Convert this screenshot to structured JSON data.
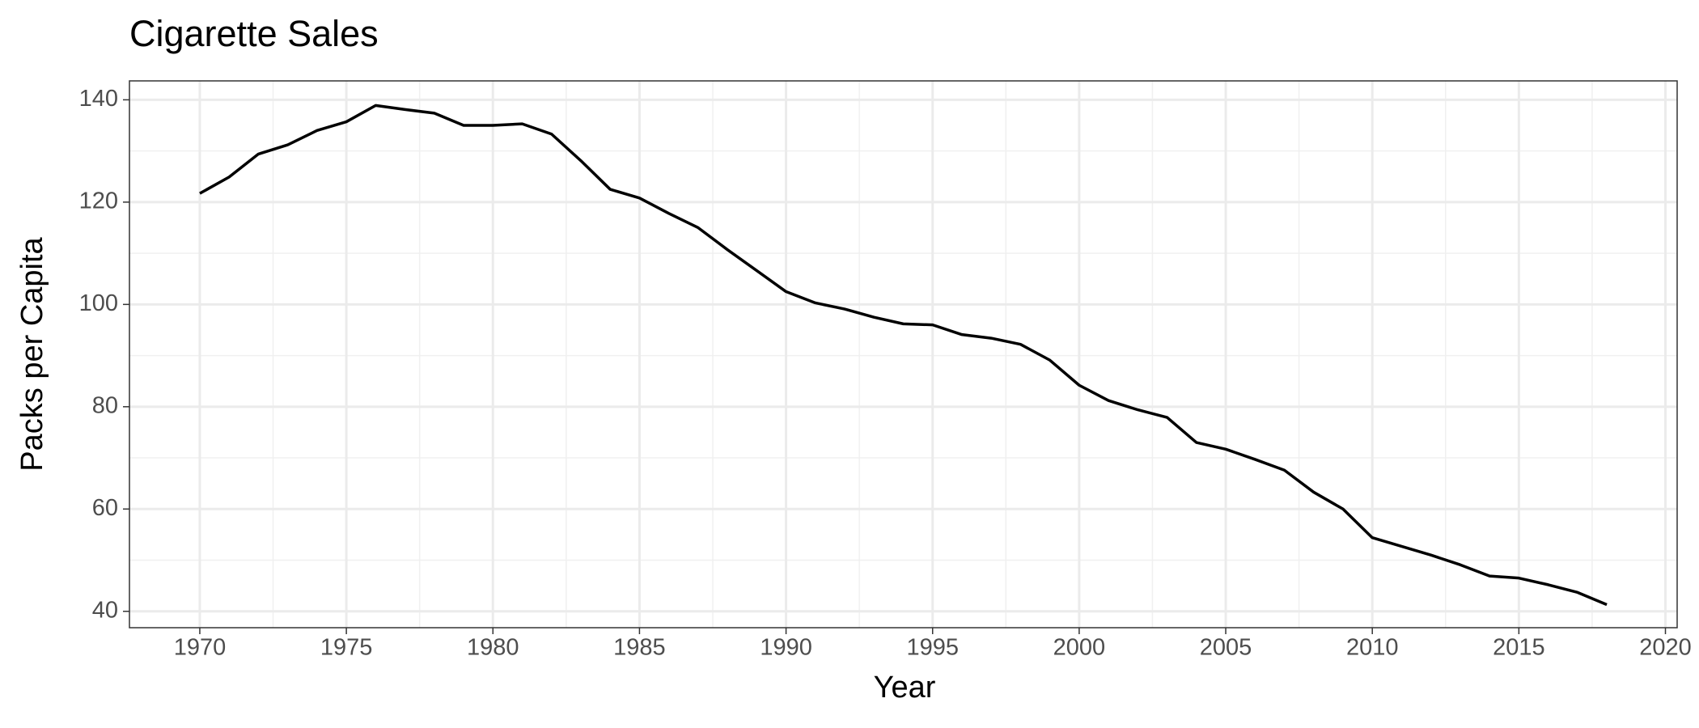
{
  "chart_data": {
    "type": "line",
    "title": "Cigarette Sales",
    "x_label": "Year",
    "y_label": "Packs per Capita",
    "x": [
      1970,
      1971,
      1972,
      1973,
      1974,
      1975,
      1976,
      1977,
      1978,
      1979,
      1980,
      1981,
      1982,
      1983,
      1984,
      1985,
      1986,
      1987,
      1988,
      1989,
      1990,
      1991,
      1992,
      1993,
      1994,
      1995,
      1996,
      1997,
      1998,
      1999,
      2000,
      2001,
      2002,
      2003,
      2004,
      2005,
      2006,
      2007,
      2008,
      2009,
      2010,
      2011,
      2012,
      2013,
      2014,
      2015,
      2016,
      2017,
      2018
    ],
    "series": [
      {
        "name": "Packs per Capita",
        "color": "#000000",
        "values": [
          121.7,
          124.9,
          129.4,
          131.2,
          134.0,
          135.7,
          138.9,
          138.1,
          137.4,
          135.0,
          135.0,
          135.3,
          133.3,
          128.1,
          122.5,
          120.8,
          117.8,
          115.0,
          110.7,
          106.6,
          102.5,
          100.3,
          99.1,
          97.5,
          96.2,
          96.0,
          94.1,
          93.4,
          92.2,
          89.1,
          84.2,
          81.2,
          79.4,
          77.9,
          73.0,
          71.7,
          69.7,
          67.6,
          63.3,
          60.0,
          54.4,
          52.7,
          51.0,
          49.1,
          46.9,
          46.5,
          45.2,
          43.7,
          41.3
        ]
      }
    ],
    "xlim": [
      1967.6,
      2020.4
    ],
    "ylim": [
      36.8,
      143.7
    ],
    "xticks": [
      1970,
      1975,
      1980,
      1985,
      1990,
      1995,
      2000,
      2005,
      2010,
      2015,
      2020
    ],
    "yticks": [
      40,
      60,
      80,
      100,
      120,
      140
    ],
    "grid": true,
    "minor_grid": true
  }
}
